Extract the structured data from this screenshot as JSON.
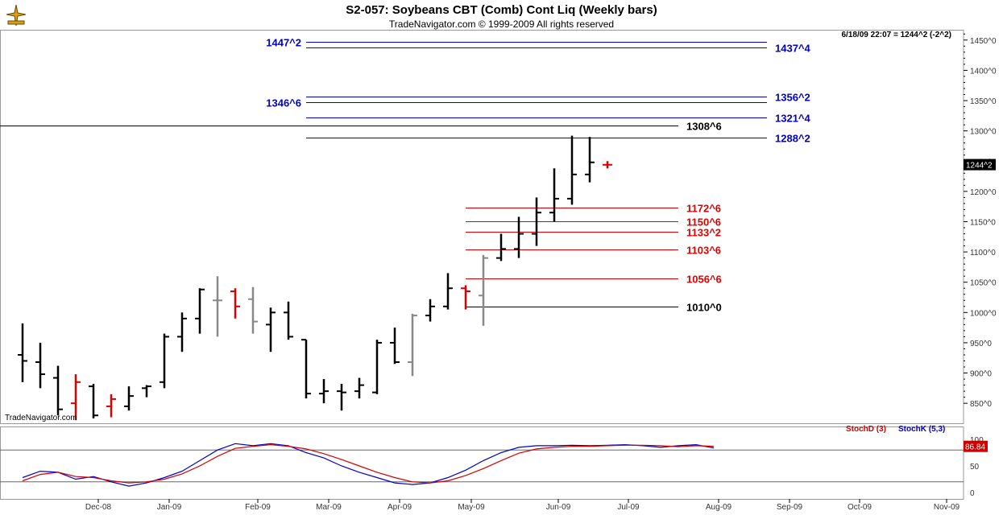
{
  "title": "S2-057:  Soybeans CBT (Comb) Cont Liq  (Weekly bars)",
  "subtitle": "TradeNavigator.com © 1999-2009 All rights reserved",
  "timestamp": "6/18/09 22:07 = 1244^2 (-2^2)",
  "watermark": "TradeNavigator.com",
  "last_price_tag": "1244^2",
  "stoch": {
    "d_label": "StochD (3)",
    "k_label": "StochK (5,3)",
    "value_tag": "86.84",
    "d_color": "#d40000",
    "k_color": "#0000cc"
  },
  "colors": {
    "blue": "#0000cc",
    "red": "#dd0000",
    "black": "#000000",
    "gray": "#888888"
  },
  "chart_data": {
    "type": "bar",
    "title": "S2-057:  Soybeans CBT (Comb) Cont Liq  (Weekly bars)",
    "x_labels": [
      "Dec-08",
      "Jan-09",
      "Feb-09",
      "Mar-09",
      "Apr-09",
      "May-09",
      "Jun-09",
      "Jul-09",
      "Aug-09",
      "Sep-09",
      "Oct-09",
      "Nov-09"
    ],
    "y_ticks": [
      "850^0",
      "900^0",
      "950^0",
      "1000^0",
      "1050^0",
      "1100^0",
      "1150^0",
      "1200^0",
      "1250^0",
      "1300^0",
      "1350^0",
      "1400^0",
      "1450^0"
    ],
    "y_tick_values": [
      850,
      900,
      950,
      1000,
      1050,
      1100,
      1150,
      1200,
      1250,
      1300,
      1350,
      1400,
      1450
    ],
    "ylim": [
      817,
      1467
    ],
    "ohlc": [
      {
        "o": 930,
        "h": 982,
        "l": 885,
        "c": 920,
        "color": "black"
      },
      {
        "o": 918,
        "h": 950,
        "l": 875,
        "c": 898,
        "color": "black"
      },
      {
        "o": 892,
        "h": 912,
        "l": 830,
        "c": 840,
        "color": "black"
      },
      {
        "o": 850,
        "h": 898,
        "l": 822,
        "c": 885,
        "color": "red"
      },
      {
        "o": 878,
        "h": 882,
        "l": 825,
        "c": 830,
        "color": "black"
      },
      {
        "o": 845,
        "h": 865,
        "l": 827,
        "c": 857,
        "color": "red"
      },
      {
        "o": 845,
        "h": 878,
        "l": 838,
        "c": 862,
        "color": "black"
      },
      {
        "o": 875,
        "h": 880,
        "l": 860,
        "c": 878,
        "color": "black"
      },
      {
        "o": 885,
        "h": 965,
        "l": 875,
        "c": 960,
        "color": "black"
      },
      {
        "o": 960,
        "h": 1000,
        "l": 935,
        "c": 990,
        "color": "black"
      },
      {
        "o": 990,
        "h": 1040,
        "l": 965,
        "c": 1038,
        "color": "black"
      },
      {
        "o": 1020,
        "h": 1060,
        "l": 960,
        "c": 1020,
        "color": "gray"
      },
      {
        "o": 1035,
        "h": 1040,
        "l": 990,
        "c": 1010,
        "color": "red"
      },
      {
        "o": 1022,
        "h": 1042,
        "l": 965,
        "c": 985,
        "color": "gray"
      },
      {
        "o": 980,
        "h": 1008,
        "l": 935,
        "c": 1000,
        "color": "black"
      },
      {
        "o": 1000,
        "h": 1018,
        "l": 955,
        "c": 960,
        "color": "black"
      },
      {
        "o": 955,
        "h": 955,
        "l": 858,
        "c": 866,
        "color": "black"
      },
      {
        "o": 866,
        "h": 890,
        "l": 850,
        "c": 870,
        "color": "black"
      },
      {
        "o": 870,
        "h": 882,
        "l": 838,
        "c": 868,
        "color": "black"
      },
      {
        "o": 870,
        "h": 892,
        "l": 858,
        "c": 880,
        "color": "black"
      },
      {
        "o": 868,
        "h": 955,
        "l": 865,
        "c": 950,
        "color": "black"
      },
      {
        "o": 950,
        "h": 975,
        "l": 915,
        "c": 918,
        "color": "black"
      },
      {
        "o": 918,
        "h": 998,
        "l": 895,
        "c": 995,
        "color": "gray"
      },
      {
        "o": 995,
        "h": 1022,
        "l": 985,
        "c": 1010,
        "color": "black"
      },
      {
        "o": 1010,
        "h": 1065,
        "l": 1005,
        "c": 1040,
        "color": "black"
      },
      {
        "o": 1040,
        "h": 1045,
        "l": 1005,
        "c": 1035,
        "color": "red"
      },
      {
        "o": 1028,
        "h": 1095,
        "l": 978,
        "c": 1090,
        "color": "gray"
      },
      {
        "o": 1090,
        "h": 1130,
        "l": 1085,
        "c": 1105,
        "color": "black"
      },
      {
        "o": 1105,
        "h": 1158,
        "l": 1090,
        "c": 1130,
        "color": "black"
      },
      {
        "o": 1130,
        "h": 1190,
        "l": 1110,
        "c": 1165,
        "color": "black"
      },
      {
        "o": 1165,
        "h": 1238,
        "l": 1150,
        "c": 1188,
        "color": "black"
      },
      {
        "o": 1188,
        "h": 1292,
        "l": 1178,
        "c": 1228,
        "color": "black"
      },
      {
        "o": 1228,
        "h": 1290,
        "l": 1215,
        "c": 1248,
        "color": "black"
      },
      {
        "o": 1244,
        "h": 1250,
        "l": 1238,
        "c": 1244,
        "color": "red"
      }
    ],
    "levels": [
      {
        "label": "1447^2",
        "value": 1447.25,
        "color": "blue",
        "side": "left"
      },
      {
        "label": "1437^4",
        "value": 1437.5,
        "color": "blue",
        "side": "right"
      },
      {
        "label": "1356^2",
        "value": 1356.25,
        "color": "blue",
        "side": "right"
      },
      {
        "label": "1346^6",
        "value": 1346.75,
        "color": "blue",
        "side": "left"
      },
      {
        "label": "1321^4",
        "value": 1321.5,
        "color": "blue",
        "side": "right"
      },
      {
        "label": "1308^6",
        "value": 1308.75,
        "color": "black",
        "side": "right"
      },
      {
        "label": "1288^2",
        "value": 1288.25,
        "color": "blue",
        "side": "right"
      },
      {
        "label": "1172^6",
        "value": 1172.75,
        "color": "red",
        "side": "right"
      },
      {
        "label": "1150^6",
        "value": 1150.75,
        "color": "red",
        "side": "right"
      },
      {
        "label": "1133^2",
        "value": 1133.25,
        "color": "red",
        "side": "right"
      },
      {
        "label": "1103^6",
        "value": 1103.75,
        "color": "red",
        "side": "right"
      },
      {
        "label": "1056^6",
        "value": 1056.75,
        "color": "red",
        "side": "right"
      },
      {
        "label": "1010^0",
        "value": 1010,
        "color": "black",
        "side": "right"
      }
    ],
    "stoch_ticks": [
      "0",
      "50",
      "100"
    ],
    "stoch_tick_values": [
      0,
      50,
      100
    ],
    "stoch_k": [
      28,
      40,
      38,
      25,
      30,
      20,
      12,
      18,
      28,
      40,
      60,
      80,
      92,
      88,
      92,
      88,
      75,
      65,
      50,
      38,
      28,
      18,
      15,
      18,
      28,
      42,
      60,
      75,
      85,
      88,
      88,
      89,
      88,
      89,
      90,
      88,
      85,
      88,
      90,
      84
    ],
    "stoch_d": [
      22,
      34,
      38,
      30,
      28,
      22,
      18,
      20,
      25,
      35,
      50,
      68,
      83,
      87,
      90,
      87,
      82,
      73,
      62,
      50,
      38,
      28,
      20,
      18,
      22,
      32,
      45,
      60,
      74,
      82,
      85,
      87,
      87,
      88,
      89,
      89,
      88,
      86,
      88,
      87
    ]
  }
}
